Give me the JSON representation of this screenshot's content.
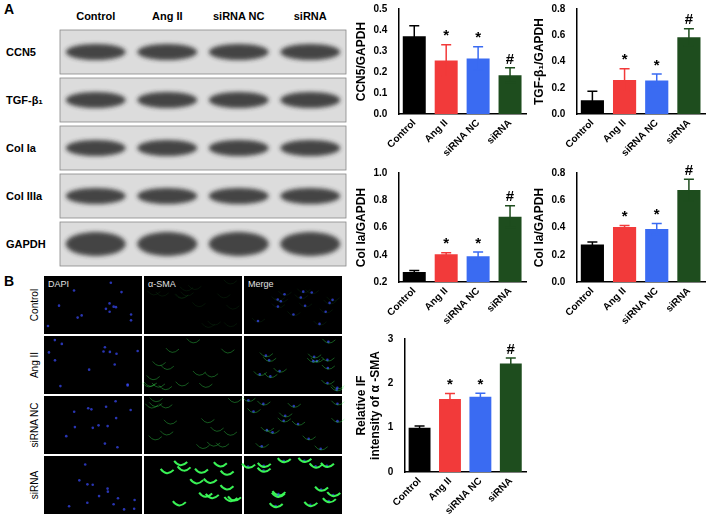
{
  "panel_labels": [
    "A",
    "B"
  ],
  "blot": {
    "columns": [
      "Control",
      "Ang II",
      "siRNA NC",
      "siRNA"
    ],
    "rows": [
      "CCN5",
      "TGF-β₁",
      "Col Ia",
      "Col IIIa",
      "GAPDH"
    ]
  },
  "immunofluorescence": {
    "columns": [
      "DAPI",
      "α-SMA",
      "Merge"
    ],
    "rows": [
      "Control",
      "Ang II",
      "siRNA NC",
      "siRNA"
    ]
  },
  "chart_data": [
    {
      "type": "bar",
      "y_label": "CCN5/GAPDH",
      "categories": [
        "Control",
        "Ang II",
        "siRNA NC",
        "siRNA"
      ],
      "values": [
        0.37,
        0.255,
        0.265,
        0.185
      ],
      "errors": [
        0.05,
        0.075,
        0.055,
        0.035
      ],
      "colors": [
        "#000000",
        "#f23a3a",
        "#3a6bf2",
        "#1e4d1e"
      ],
      "ylim": [
        0,
        0.5
      ],
      "yticks": [
        {
          "value": 0,
          "label": "0.0"
        },
        0.1,
        0.2,
        0.3,
        0.4,
        0.5
      ],
      "annotations": [
        {
          "category": "Ang II",
          "text": "*"
        },
        {
          "category": "siRNA NC",
          "text": "*"
        },
        {
          "category": "siRNA",
          "text": "#"
        }
      ],
      "grid": false
    },
    {
      "type": "bar",
      "y_label": "TGF-β₁/GAPDH",
      "categories": [
        "Control",
        "Ang II",
        "siRNA NC",
        "siRNA"
      ],
      "values": [
        0.105,
        0.26,
        0.255,
        0.585
      ],
      "errors": [
        0.07,
        0.085,
        0.05,
        0.065
      ],
      "colors": [
        "#000000",
        "#f23a3a",
        "#3a6bf2",
        "#1e4d1e"
      ],
      "ylim": [
        0,
        0.8
      ],
      "yticks": [
        {
          "value": 0,
          "label": "0.0"
        },
        0.2,
        0.4,
        0.6,
        0.8
      ],
      "annotations": [
        {
          "category": "Ang II",
          "text": "*"
        },
        {
          "category": "siRNA NC",
          "text": "*"
        },
        {
          "category": "siRNA",
          "text": "#"
        }
      ],
      "grid": false
    },
    {
      "type": "bar",
      "y_label": "Col Ia/GAPDH",
      "categories": [
        "Control",
        "Ang II",
        "siRNA NC",
        "siRNA"
      ],
      "values": [
        0.275,
        0.405,
        0.39,
        0.68
      ],
      "errors": [
        0.01,
        0.01,
        0.03,
        0.08
      ],
      "colors": [
        "#000000",
        "#f23a3a",
        "#3a6bf2",
        "#1e4d1e"
      ],
      "ylim": [
        0.2,
        1
      ],
      "yticks": [
        0.2,
        0.4,
        0.6,
        0.8,
        {
          "value": 1,
          "label": "1.0"
        }
      ],
      "annotations": [
        {
          "category": "Ang II",
          "text": "*"
        },
        {
          "category": "siRNA NC",
          "text": "*"
        },
        {
          "category": "siRNA",
          "text": "#"
        }
      ],
      "grid": false
    },
    {
      "type": "bar",
      "y_label": "Col Ia/GAPDH",
      "categories": [
        "Control",
        "Ang II",
        "siRNA NC",
        "siRNA"
      ],
      "values": [
        0.275,
        0.405,
        0.39,
        0.675
      ],
      "errors": [
        0.02,
        0.01,
        0.04,
        0.08
      ],
      "colors": [
        "#000000",
        "#f23a3a",
        "#3a6bf2",
        "#1e4d1e"
      ],
      "ylim": [
        0,
        0.8
      ],
      "yticks": [
        {
          "value": 0,
          "label": "0.0"
        },
        0.2,
        0.4,
        0.6,
        0.8
      ],
      "annotations": [
        {
          "category": "Ang II",
          "text": "*"
        },
        {
          "category": "siRNA NC",
          "text": "*"
        },
        {
          "category": "siRNA",
          "text": "#"
        }
      ],
      "grid": false
    },
    {
      "type": "bar",
      "y_label": [
        "Relative IF",
        "intensity of α -SMA"
      ],
      "categories": [
        "Control",
        "Ang II",
        "siRNA NC",
        "siRNA"
      ],
      "values": [
        1.0,
        1.65,
        1.7,
        2.45
      ],
      "errors": [
        0.04,
        0.12,
        0.08,
        0.12
      ],
      "colors": [
        "#000000",
        "#f23a3a",
        "#3a6bf2",
        "#1e4d1e"
      ],
      "ylim": [
        0,
        3
      ],
      "yticks": [
        0,
        1,
        2,
        3
      ],
      "annotations": [
        {
          "category": "Ang II",
          "text": "*"
        },
        {
          "category": "siRNA NC",
          "text": "*"
        },
        {
          "category": "siRNA",
          "text": "#"
        }
      ],
      "grid": false
    }
  ]
}
